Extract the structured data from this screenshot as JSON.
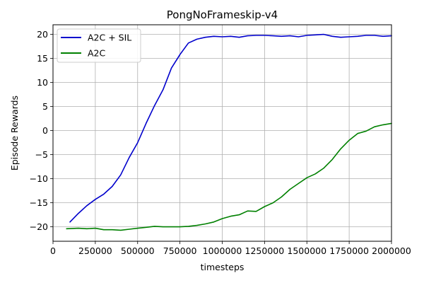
{
  "chart_data": {
    "type": "line",
    "title": "PongNoFrameskip-v4",
    "xlabel": "timesteps",
    "ylabel": "Episode Rewards",
    "xlim": [
      0,
      2000000
    ],
    "ylim": [
      -23,
      22
    ],
    "xticks": [
      0,
      250000,
      500000,
      750000,
      1000000,
      1250000,
      1500000,
      1750000,
      2000000
    ],
    "xtick_labels": [
      "0",
      "250000",
      "500000",
      "750000",
      "1000000",
      "1250000",
      "1500000",
      "1750000",
      "2000000"
    ],
    "yticks": [
      -20,
      -15,
      -10,
      -5,
      0,
      5,
      10,
      15,
      20
    ],
    "ytick_labels": [
      "−20",
      "−15",
      "−10",
      "−5",
      "0",
      "5",
      "10",
      "15",
      "20"
    ],
    "grid": true,
    "legend_position": "top-left",
    "series": [
      {
        "name": "A2C + SIL",
        "color": "#0000cc",
        "x": [
          100000,
          150000,
          200000,
          250000,
          300000,
          350000,
          400000,
          450000,
          500000,
          550000,
          600000,
          650000,
          700000,
          750000,
          800000,
          850000,
          900000,
          950000,
          1000000,
          1050000,
          1100000,
          1150000,
          1200000,
          1250000,
          1300000,
          1350000,
          1400000,
          1450000,
          1500000,
          1550000,
          1600000,
          1650000,
          1700000,
          1750000,
          1800000,
          1850000,
          1900000,
          1950000,
          2000000
        ],
        "y": [
          -19,
          -17.2,
          -15.6,
          -14.3,
          -13.2,
          -11.6,
          -9.2,
          -5.6,
          -2.5,
          1.5,
          5.2,
          8.5,
          13,
          15.8,
          18.2,
          19,
          19.4,
          19.6,
          19.5,
          19.6,
          19.4,
          19.7,
          19.8,
          19.8,
          19.7,
          19.6,
          19.7,
          19.5,
          19.8,
          19.9,
          20,
          19.6,
          19.4,
          19.5,
          19.6,
          19.8,
          19.8,
          19.6,
          19.7
        ]
      },
      {
        "name": "A2C",
        "color": "#008000",
        "x": [
          80000,
          150000,
          200000,
          250000,
          300000,
          350000,
          400000,
          450000,
          500000,
          550000,
          600000,
          650000,
          700000,
          750000,
          800000,
          850000,
          900000,
          950000,
          1000000,
          1050000,
          1100000,
          1150000,
          1200000,
          1250000,
          1300000,
          1350000,
          1400000,
          1450000,
          1500000,
          1550000,
          1600000,
          1650000,
          1700000,
          1750000,
          1800000,
          1850000,
          1900000,
          1950000,
          2000000
        ],
        "y": [
          -20.4,
          -20.3,
          -20.4,
          -20.3,
          -20.6,
          -20.6,
          -20.7,
          -20.5,
          -20.3,
          -20.1,
          -19.9,
          -20,
          -20,
          -20,
          -19.9,
          -19.7,
          -19.4,
          -19,
          -18.3,
          -17.8,
          -17.5,
          -16.7,
          -16.8,
          -15.8,
          -15,
          -13.8,
          -12.2,
          -11,
          -9.8,
          -9,
          -7.8,
          -6,
          -3.8,
          -2,
          -0.6,
          -0.1,
          0.8,
          1.2,
          1.5
        ]
      }
    ]
  }
}
